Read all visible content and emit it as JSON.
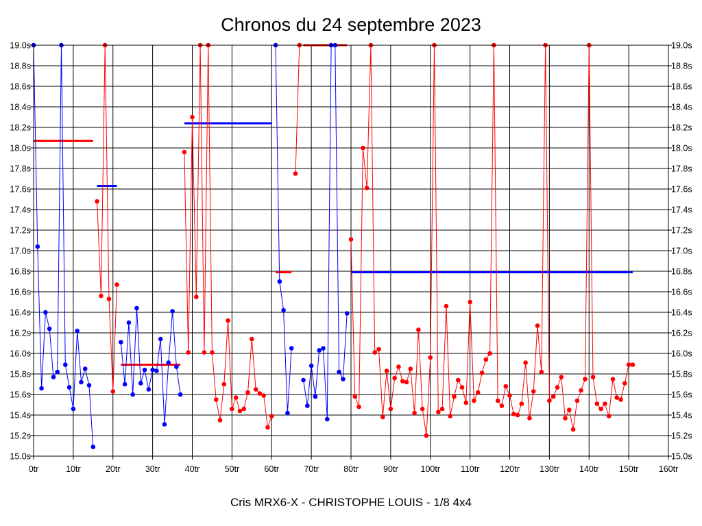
{
  "chart_data": {
    "type": "line",
    "title": "Chronos du 24 septembre 2023",
    "subtitle": "Cris MRX6-X - CHRISTOPHE LOUIS - 1/8 4x4",
    "xlim": [
      0,
      160
    ],
    "ylim": [
      15.0,
      19.0
    ],
    "x_ticks": [
      0,
      10,
      20,
      30,
      40,
      50,
      60,
      70,
      80,
      90,
      100,
      110,
      120,
      130,
      140,
      150,
      160
    ],
    "x_tick_labels": [
      "0tr",
      "10tr",
      "20tr",
      "30tr",
      "40tr",
      "50tr",
      "60tr",
      "70tr",
      "80tr",
      "90tr",
      "100tr",
      "110tr",
      "120tr",
      "130tr",
      "140tr",
      "150tr",
      "160tr"
    ],
    "y_ticks": [
      15.0,
      15.2,
      15.4,
      15.6,
      15.8,
      16.0,
      16.2,
      16.4,
      16.6,
      16.8,
      17.0,
      17.2,
      17.4,
      17.6,
      17.8,
      18.0,
      18.2,
      18.4,
      18.6,
      18.8,
      19.0
    ],
    "y_tick_labels": [
      "15.0s",
      "15.2s",
      "15.4s",
      "15.6s",
      "15.8s",
      "16.0s",
      "16.2s",
      "16.4s",
      "16.6s",
      "16.8s",
      "17.0s",
      "17.2s",
      "17.4s",
      "17.6s",
      "17.8s",
      "18.0s",
      "18.2s",
      "18.4s",
      "18.6s",
      "18.8s",
      "19.0s"
    ],
    "grid": true,
    "legend": "none",
    "colors": {
      "red": "#ff0000",
      "blue": "#0000ff"
    },
    "segments": [
      {
        "color": "blue",
        "points": [
          [
            0,
            19.0
          ],
          [
            1,
            17.04
          ],
          [
            2,
            15.66
          ],
          [
            3,
            16.4
          ],
          [
            4,
            16.24
          ],
          [
            5,
            15.77
          ],
          [
            6,
            15.82
          ],
          [
            7,
            19.0
          ],
          [
            8,
            15.89
          ],
          [
            9,
            15.67
          ],
          [
            10,
            15.46
          ],
          [
            11,
            16.22
          ],
          [
            12,
            15.72
          ],
          [
            13,
            15.85
          ],
          [
            14,
            15.69
          ],
          [
            15,
            15.09
          ]
        ]
      },
      {
        "color": "red",
        "points": [
          [
            16,
            17.48
          ],
          [
            17,
            16.56
          ],
          [
            18,
            19.0
          ],
          [
            19,
            16.53
          ],
          [
            20,
            15.63
          ],
          [
            21,
            16.67
          ]
        ]
      },
      {
        "color": "blue",
        "points": [
          [
            22,
            16.11
          ],
          [
            23,
            15.7
          ],
          [
            24,
            16.3
          ],
          [
            25,
            15.6
          ],
          [
            26,
            16.44
          ],
          [
            27,
            15.71
          ],
          [
            28,
            15.84
          ],
          [
            29,
            15.65
          ],
          [
            30,
            15.84
          ],
          [
            31,
            15.83
          ],
          [
            32,
            16.14
          ],
          [
            33,
            15.31
          ],
          [
            34,
            15.91
          ],
          [
            35,
            16.41
          ],
          [
            36,
            15.87
          ],
          [
            37,
            15.6
          ]
        ]
      },
      {
        "color": "red",
        "points": [
          [
            38,
            17.96
          ],
          [
            39,
            16.01
          ],
          [
            40,
            18.3
          ],
          [
            41,
            16.55
          ],
          [
            42,
            19.0
          ],
          [
            43,
            16.01
          ],
          [
            44,
            19.0
          ],
          [
            45,
            16.01
          ],
          [
            46,
            15.55
          ],
          [
            47,
            15.35
          ],
          [
            48,
            15.7
          ],
          [
            49,
            16.32
          ],
          [
            50,
            15.46
          ],
          [
            51,
            15.57
          ],
          [
            52,
            15.44
          ],
          [
            53,
            15.46
          ],
          [
            54,
            15.62
          ],
          [
            55,
            16.14
          ],
          [
            56,
            15.65
          ],
          [
            57,
            15.61
          ],
          [
            58,
            15.59
          ],
          [
            59,
            15.28
          ],
          [
            60,
            15.39
          ]
        ]
      },
      {
        "color": "blue",
        "points": [
          [
            61,
            19.0
          ],
          [
            62,
            16.7
          ],
          [
            63,
            16.42
          ],
          [
            64,
            15.42
          ],
          [
            65,
            16.05
          ]
        ]
      },
      {
        "color": "red",
        "points": [
          [
            66,
            17.75
          ],
          [
            67,
            19.0
          ]
        ]
      },
      {
        "color": "blue",
        "points": [
          [
            68,
            15.74
          ],
          [
            69,
            15.49
          ],
          [
            70,
            15.88
          ],
          [
            71,
            15.58
          ],
          [
            72,
            16.03
          ],
          [
            73,
            16.05
          ],
          [
            74,
            15.36
          ],
          [
            75,
            19.0
          ],
          [
            76,
            19.0
          ],
          [
            77,
            15.82
          ],
          [
            78,
            15.75
          ],
          [
            79,
            16.39
          ]
        ]
      },
      {
        "color": "red",
        "points": [
          [
            80,
            17.11
          ],
          [
            81,
            15.58
          ],
          [
            82,
            15.48
          ],
          [
            83,
            18.0
          ],
          [
            84,
            17.61
          ],
          [
            85,
            19.0
          ],
          [
            86,
            16.01
          ],
          [
            87,
            16.04
          ],
          [
            88,
            15.38
          ],
          [
            89,
            15.83
          ],
          [
            90,
            15.46
          ],
          [
            91,
            15.76
          ],
          [
            92,
            15.87
          ],
          [
            93,
            15.73
          ],
          [
            94,
            15.72
          ],
          [
            95,
            15.85
          ],
          [
            96,
            15.42
          ],
          [
            97,
            16.23
          ],
          [
            98,
            15.46
          ],
          [
            99,
            15.2
          ],
          [
            100,
            15.96
          ],
          [
            101,
            19.0
          ],
          [
            102,
            15.43
          ],
          [
            103,
            15.46
          ],
          [
            104,
            16.46
          ],
          [
            105,
            15.39
          ],
          [
            106,
            15.58
          ],
          [
            107,
            15.74
          ],
          [
            108,
            15.67
          ],
          [
            109,
            15.52
          ],
          [
            110,
            16.5
          ],
          [
            111,
            15.54
          ],
          [
            112,
            15.62
          ],
          [
            113,
            15.81
          ],
          [
            114,
            15.94
          ],
          [
            115,
            16.0
          ],
          [
            116,
            19.0
          ],
          [
            117,
            15.54
          ],
          [
            118,
            15.49
          ],
          [
            119,
            15.68
          ],
          [
            120,
            15.59
          ],
          [
            121,
            15.41
          ],
          [
            122,
            15.4
          ],
          [
            123,
            15.51
          ],
          [
            124,
            15.91
          ],
          [
            125,
            15.37
          ],
          [
            126,
            15.63
          ],
          [
            127,
            16.27
          ],
          [
            128,
            15.82
          ],
          [
            129,
            19.0
          ],
          [
            130,
            15.54
          ],
          [
            131,
            15.58
          ],
          [
            132,
            15.67
          ],
          [
            133,
            15.77
          ],
          [
            134,
            15.37
          ],
          [
            135,
            15.45
          ],
          [
            136,
            15.26
          ],
          [
            137,
            15.54
          ],
          [
            138,
            15.64
          ],
          [
            139,
            15.75
          ],
          [
            140,
            19.0
          ],
          [
            141,
            15.77
          ],
          [
            142,
            15.51
          ],
          [
            143,
            15.46
          ],
          [
            144,
            15.51
          ],
          [
            145,
            15.39
          ],
          [
            146,
            15.75
          ],
          [
            147,
            15.57
          ],
          [
            148,
            15.55
          ],
          [
            149,
            15.71
          ],
          [
            150,
            15.89
          ],
          [
            151,
            15.89
          ]
        ]
      }
    ],
    "average_lines": [
      {
        "color": "red",
        "x_start": 0,
        "x_end": 15,
        "y": 18.07
      },
      {
        "color": "blue",
        "x_start": 16,
        "x_end": 21,
        "y": 17.63
      },
      {
        "color": "red",
        "x_start": 22,
        "x_end": 37,
        "y": 15.89
      },
      {
        "color": "blue",
        "x_start": 38,
        "x_end": 60,
        "y": 18.24
      },
      {
        "color": "red",
        "x_start": 61,
        "x_end": 65,
        "y": 16.79
      },
      {
        "color": "red",
        "x_start": 68,
        "x_end": 79,
        "y": 19.0
      },
      {
        "color": "blue",
        "x_start": 80,
        "x_end": 151,
        "y": 16.79
      }
    ]
  }
}
